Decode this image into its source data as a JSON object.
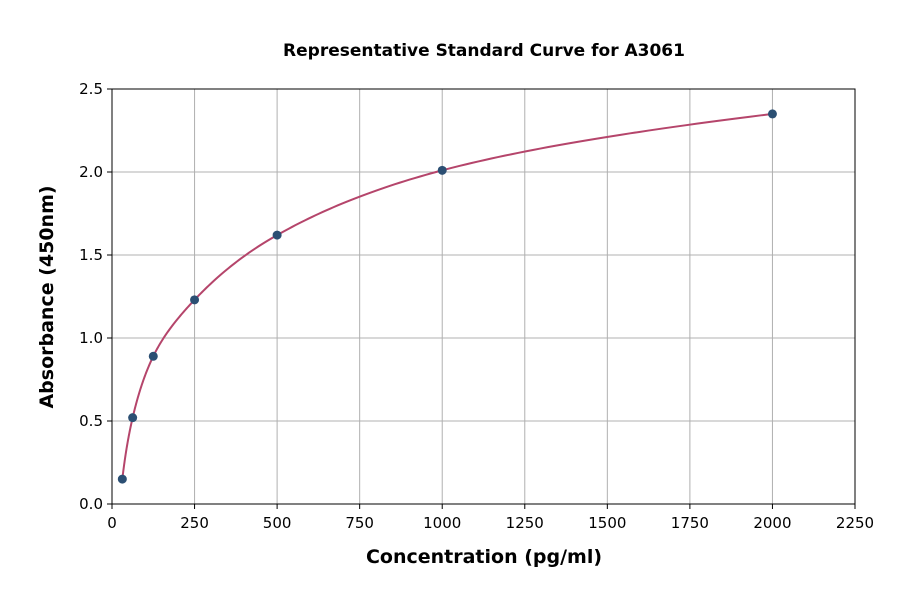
{
  "chart_data": {
    "type": "scatter",
    "title": "Representative Standard Curve for A3061",
    "xlabel": "Concentration (pg/ml)",
    "ylabel": "Absorbance (450nm)",
    "xlim": [
      0,
      2250
    ],
    "ylim": [
      0,
      2.5
    ],
    "xticks": [
      0,
      250,
      500,
      750,
      1000,
      1250,
      1500,
      1750,
      2000,
      2250
    ],
    "yticks": [
      0.0,
      0.5,
      1.0,
      1.5,
      2.0,
      2.5
    ],
    "ytick_labels": [
      "0.0",
      "0.5",
      "1.0",
      "1.5",
      "2.0",
      "2.5"
    ],
    "grid": true,
    "points": {
      "x": [
        31.25,
        62.5,
        125,
        250,
        500,
        1000,
        2000
      ],
      "y": [
        0.15,
        0.52,
        0.89,
        1.23,
        1.62,
        2.01,
        2.35
      ]
    },
    "fit_curve": true,
    "colors": {
      "points": "#2b4f73",
      "curve": "#b5456b",
      "grid": "#b0b0b0"
    }
  }
}
